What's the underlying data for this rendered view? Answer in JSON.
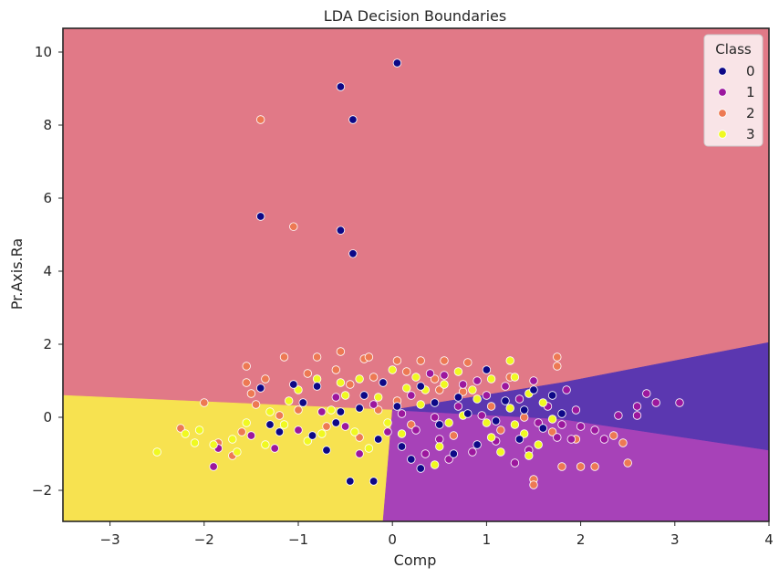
{
  "chart_data": {
    "type": "scatter",
    "title": "LDA Decision Boundaries",
    "xlabel": "Comp",
    "ylabel": "Pr.Axis.Ra",
    "xlim": [
      -3.5,
      4.0
    ],
    "ylim": [
      -2.85,
      10.65
    ],
    "xticks": [
      -3,
      -2,
      -1,
      0,
      1,
      2,
      3,
      4
    ],
    "xtick_labels": [
      "−3",
      "−2",
      "−1",
      "0",
      "1",
      "2",
      "3",
      "4"
    ],
    "yticks": [
      -2,
      0,
      2,
      4,
      6,
      8,
      10
    ],
    "ytick_labels": [
      "−2",
      "0",
      "2",
      "4",
      "6",
      "8",
      "10"
    ],
    "grid": false,
    "legend": {
      "title": "Class",
      "placement": "top-right",
      "entries": [
        {
          "label": "0",
          "color": "#0d0887"
        },
        {
          "label": "1",
          "color": "#9c179e"
        },
        {
          "label": "2",
          "color": "#ed7953"
        },
        {
          "label": "3",
          "color": "#f0f921"
        }
      ]
    },
    "regions": [
      {
        "class": "0",
        "color": "#5b37b0"
      },
      {
        "class": "1",
        "color": "#a742b8"
      },
      {
        "class": "2",
        "color": "#e17987"
      },
      {
        "class": "3",
        "color": "#f7e250"
      }
    ],
    "series": [
      {
        "name": "0",
        "color": "#0d0887",
        "points": [
          [
            0.05,
            9.7
          ],
          [
            -0.55,
            9.05
          ],
          [
            -0.42,
            8.15
          ],
          [
            -1.4,
            5.5
          ],
          [
            -0.55,
            5.12
          ],
          [
            -0.42,
            4.48
          ],
          [
            -1.4,
            0.8
          ],
          [
            -1.05,
            0.9
          ],
          [
            -0.8,
            0.85
          ],
          [
            -0.55,
            0.15
          ],
          [
            -0.3,
            0.6
          ],
          [
            -0.15,
            -0.6
          ],
          [
            0.05,
            0.3
          ],
          [
            0.3,
            0.85
          ],
          [
            0.3,
            -1.4
          ],
          [
            0.5,
            -0.2
          ],
          [
            0.7,
            0.55
          ],
          [
            0.9,
            -0.75
          ],
          [
            1.0,
            1.3
          ],
          [
            1.1,
            -0.1
          ],
          [
            1.35,
            -0.6
          ],
          [
            1.5,
            0.75
          ],
          [
            1.7,
            0.6
          ],
          [
            -0.45,
            -1.75
          ],
          [
            -0.2,
            -1.75
          ],
          [
            -1.2,
            -0.4
          ],
          [
            -0.95,
            0.4
          ],
          [
            0.2,
            -1.15
          ],
          [
            -0.7,
            -0.9
          ],
          [
            -1.3,
            -0.2
          ],
          [
            -0.85,
            -0.5
          ],
          [
            -0.6,
            -0.15
          ],
          [
            -0.35,
            0.25
          ],
          [
            0.1,
            -0.8
          ],
          [
            0.45,
            0.4
          ],
          [
            0.65,
            -1.0
          ],
          [
            0.8,
            0.1
          ],
          [
            1.2,
            0.45
          ],
          [
            1.4,
            0.2
          ],
          [
            1.6,
            -0.3
          ],
          [
            1.8,
            0.1
          ],
          [
            -0.1,
            0.95
          ]
        ]
      },
      {
        "name": "1",
        "color": "#9c179e",
        "points": [
          [
            -1.9,
            -1.35
          ],
          [
            -1.85,
            -0.85
          ],
          [
            2.6,
            0.3
          ],
          [
            2.6,
            0.05
          ],
          [
            2.7,
            0.65
          ],
          [
            2.8,
            0.4
          ],
          [
            3.05,
            0.4
          ],
          [
            1.95,
            0.2
          ],
          [
            2.0,
            -0.25
          ],
          [
            2.25,
            -0.6
          ],
          [
            2.4,
            0.05
          ],
          [
            1.9,
            -0.6
          ],
          [
            0.4,
            1.2
          ],
          [
            0.55,
            1.15
          ],
          [
            0.75,
            0.9
          ],
          [
            1.0,
            0.6
          ],
          [
            1.2,
            0.85
          ],
          [
            1.55,
            -0.15
          ],
          [
            1.75,
            -0.55
          ],
          [
            1.45,
            -0.9
          ],
          [
            1.1,
            -0.65
          ],
          [
            0.85,
            -0.95
          ],
          [
            0.5,
            -0.6
          ],
          [
            0.25,
            -0.35
          ],
          [
            0.1,
            0.1
          ],
          [
            -0.2,
            0.35
          ],
          [
            -0.5,
            -0.25
          ],
          [
            -0.75,
            0.15
          ],
          [
            -1.0,
            -0.35
          ],
          [
            -1.25,
            -0.85
          ],
          [
            0.45,
            0.0
          ],
          [
            0.7,
            0.3
          ],
          [
            0.95,
            0.05
          ],
          [
            1.35,
            0.5
          ],
          [
            1.65,
            0.3
          ],
          [
            1.85,
            0.75
          ],
          [
            0.2,
            0.6
          ],
          [
            -0.05,
            -0.4
          ],
          [
            -0.35,
            -1.0
          ],
          [
            0.6,
            -1.15
          ],
          [
            1.3,
            -1.25
          ],
          [
            0.9,
            1.0
          ],
          [
            1.5,
            1.0
          ],
          [
            1.8,
            -0.2
          ],
          [
            -0.6,
            0.55
          ],
          [
            -1.5,
            -0.5
          ],
          [
            2.15,
            -0.35
          ],
          [
            0.35,
            -1.0
          ]
        ]
      },
      {
        "name": "2",
        "color": "#ed7953",
        "points": [
          [
            -1.4,
            8.15
          ],
          [
            -1.05,
            5.22
          ],
          [
            1.75,
            1.65
          ],
          [
            1.75,
            1.4
          ],
          [
            -0.55,
            1.8
          ],
          [
            -0.3,
            1.6
          ],
          [
            -0.8,
            1.65
          ],
          [
            -1.15,
            1.65
          ],
          [
            -0.25,
            1.65
          ],
          [
            0.05,
            1.55
          ],
          [
            0.3,
            1.55
          ],
          [
            0.55,
            1.55
          ],
          [
            0.8,
            1.5
          ],
          [
            -1.55,
            1.4
          ],
          [
            -1.55,
            0.95
          ],
          [
            -1.5,
            0.65
          ],
          [
            -2.0,
            0.4
          ],
          [
            -1.6,
            -0.4
          ],
          [
            -1.85,
            -0.7
          ],
          [
            -1.7,
            -1.05
          ],
          [
            -0.35,
            -0.55
          ],
          [
            0.05,
            0.45
          ],
          [
            0.45,
            1.05
          ],
          [
            0.75,
            0.7
          ],
          [
            1.05,
            0.3
          ],
          [
            1.4,
            0.0
          ],
          [
            1.7,
            -0.4
          ],
          [
            1.95,
            -0.6
          ],
          [
            2.35,
            -0.5
          ],
          [
            2.45,
            -0.7
          ],
          [
            2.5,
            -1.25
          ],
          [
            2.15,
            -1.35
          ],
          [
            2.0,
            -1.35
          ],
          [
            1.5,
            -1.7
          ],
          [
            1.5,
            -1.85
          ],
          [
            1.8,
            -1.35
          ],
          [
            -1.0,
            0.2
          ],
          [
            -0.7,
            -0.25
          ],
          [
            -0.45,
            0.9
          ],
          [
            -0.15,
            0.2
          ],
          [
            0.2,
            -0.2
          ],
          [
            0.65,
            -0.5
          ],
          [
            1.15,
            -0.35
          ],
          [
            -1.35,
            1.05
          ],
          [
            -0.9,
            1.2
          ],
          [
            -0.6,
            1.3
          ],
          [
            -0.2,
            1.1
          ],
          [
            0.15,
            1.25
          ],
          [
            0.5,
            0.75
          ],
          [
            1.25,
            1.1
          ],
          [
            -1.45,
            0.35
          ],
          [
            -1.2,
            0.05
          ],
          [
            -2.25,
            -0.3
          ]
        ]
      },
      {
        "name": "3",
        "color": "#f0f921",
        "points": [
          [
            -2.5,
            -0.95
          ],
          [
            -2.2,
            -0.45
          ],
          [
            -2.05,
            -0.35
          ],
          [
            -1.9,
            -0.75
          ],
          [
            -1.7,
            -0.6
          ],
          [
            -1.55,
            -0.15
          ],
          [
            -1.3,
            0.15
          ],
          [
            -1.1,
            0.45
          ],
          [
            -0.8,
            1.05
          ],
          [
            -0.55,
            0.95
          ],
          [
            -0.35,
            1.05
          ],
          [
            0.0,
            1.3
          ],
          [
            0.25,
            1.1
          ],
          [
            0.55,
            0.9
          ],
          [
            0.85,
            0.75
          ],
          [
            1.05,
            1.05
          ],
          [
            1.25,
            1.55
          ],
          [
            1.3,
            1.1
          ],
          [
            1.45,
            0.65
          ],
          [
            1.6,
            0.4
          ],
          [
            1.55,
            -0.75
          ],
          [
            1.3,
            -0.2
          ],
          [
            1.05,
            -0.55
          ],
          [
            0.75,
            0.05
          ],
          [
            0.5,
            -0.8
          ],
          [
            0.3,
            0.35
          ],
          [
            0.1,
            -0.45
          ],
          [
            -0.15,
            0.55
          ],
          [
            -0.4,
            -0.4
          ],
          [
            -0.65,
            0.2
          ],
          [
            -0.9,
            -0.65
          ],
          [
            -1.15,
            -0.2
          ],
          [
            -1.35,
            -0.75
          ],
          [
            0.6,
            -0.15
          ],
          [
            0.9,
            0.5
          ],
          [
            1.15,
            -0.95
          ],
          [
            1.45,
            -1.05
          ],
          [
            0.35,
            0.75
          ],
          [
            -0.25,
            -0.85
          ],
          [
            -0.5,
            0.6
          ],
          [
            -1.0,
            0.75
          ],
          [
            0.7,
            1.25
          ],
          [
            1.0,
            -0.15
          ],
          [
            1.25,
            0.25
          ],
          [
            1.4,
            -0.45
          ],
          [
            0.15,
            0.8
          ],
          [
            -0.05,
            -0.15
          ],
          [
            -0.75,
            -0.45
          ],
          [
            -1.65,
            -0.95
          ],
          [
            -2.1,
            -0.7
          ],
          [
            1.7,
            -0.05
          ],
          [
            0.45,
            -1.3
          ]
        ]
      }
    ]
  }
}
